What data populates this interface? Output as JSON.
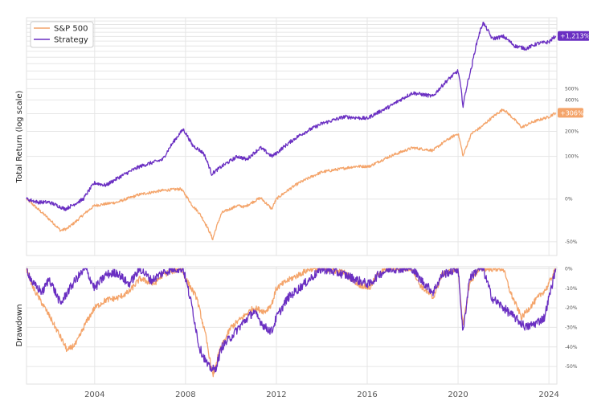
{
  "chart_data": [
    {
      "type": "line",
      "panel": "top",
      "ylabel": "Total Return (log scale)",
      "yscale": "log",
      "ylim": [
        -0.6,
        18.0
      ],
      "y_ticks": [
        -0.5,
        0,
        1,
        2,
        4,
        5
      ],
      "y_tick_labels": [
        "-50%",
        "0%",
        "100%",
        "200%",
        "400%",
        "500%"
      ],
      "x_ticks": [
        2004,
        2008,
        2012,
        2016,
        2020,
        2024
      ],
      "xlim": [
        2001.0,
        2024.35
      ],
      "grid": true,
      "legend": "top-left",
      "series": [
        {
          "name": "S&P 500",
          "color": "#f4a46a",
          "end_label": "+306%",
          "x": [
            2001.0,
            2001.5,
            2002.0,
            2002.5,
            2002.8,
            2003.2,
            2003.6,
            2004.0,
            2005.0,
            2006.0,
            2007.0,
            2007.8,
            2008.3,
            2008.6,
            2009.2,
            2009.6,
            2010.3,
            2010.6,
            2011.3,
            2011.8,
            2012.0,
            2013.0,
            2014.0,
            2015.5,
            2016.1,
            2017.0,
            2018.0,
            2018.9,
            2019.5,
            2020.0,
            2020.22,
            2020.6,
            2021.0,
            2021.99,
            2022.8,
            2023.3,
            2024.0,
            2024.3
          ],
          "values": [
            0.0,
            -0.15,
            -0.28,
            -0.4,
            -0.38,
            -0.3,
            -0.2,
            -0.1,
            -0.05,
            0.08,
            0.15,
            0.18,
            -0.1,
            -0.2,
            -0.48,
            -0.2,
            -0.1,
            -0.12,
            0.02,
            -0.15,
            0.0,
            0.3,
            0.55,
            0.7,
            0.7,
            1.0,
            1.3,
            1.2,
            1.6,
            1.9,
            1.0,
            1.9,
            2.2,
            3.3,
            2.2,
            2.5,
            2.8,
            3.06
          ]
        },
        {
          "name": "Strategy",
          "color": "#6a2fc2",
          "end_label": "+1,213%",
          "x": [
            2001.0,
            2001.5,
            2002.0,
            2002.7,
            2003.0,
            2003.5,
            2004.0,
            2004.5,
            2005.0,
            2006.0,
            2007.0,
            2007.9,
            2008.3,
            2008.8,
            2009.15,
            2009.6,
            2010.3,
            2010.7,
            2011.3,
            2011.8,
            2012.0,
            2013.0,
            2014.0,
            2015.0,
            2016.0,
            2017.0,
            2018.0,
            2018.9,
            2019.5,
            2020.0,
            2020.22,
            2020.6,
            2020.9,
            2021.1,
            2021.5,
            2022.0,
            2022.5,
            2023.0,
            2023.5,
            2024.0,
            2024.3
          ],
          "values": [
            0.0,
            -0.05,
            -0.05,
            -0.15,
            -0.1,
            0.0,
            0.3,
            0.25,
            0.4,
            0.7,
            0.9,
            2.1,
            1.4,
            1.1,
            0.5,
            0.7,
            1.0,
            0.9,
            1.3,
            1.0,
            1.1,
            1.8,
            2.4,
            2.8,
            2.7,
            3.5,
            4.6,
            4.3,
            5.8,
            7.0,
            3.5,
            7.5,
            13.0,
            16.5,
            12.5,
            13.0,
            11.0,
            10.5,
            11.5,
            11.8,
            13.13
          ]
        }
      ]
    },
    {
      "type": "line",
      "panel": "bottom",
      "ylabel": "Drawdown",
      "ylim": [
        -59,
        1
      ],
      "y_ticks": [
        0,
        -10,
        -20,
        -30,
        -40,
        -50
      ],
      "y_tick_labels": [
        "0%",
        "-10%",
        "-20%",
        "-30%",
        "-40%",
        "-50%"
      ],
      "x_ticks": [
        2004,
        2008,
        2012,
        2016,
        2020,
        2024
      ],
      "x_tick_labels": [
        "2004",
        "2008",
        "2012",
        "2016",
        "2020",
        "2024"
      ],
      "xlim": [
        2001.0,
        2024.35
      ],
      "grid": true,
      "series": [
        {
          "name": "S&P 500",
          "color": "#f4a46a",
          "x": [
            2001.0,
            2001.3,
            2001.7,
            2002.0,
            2002.5,
            2002.8,
            2003.2,
            2003.6,
            2004.0,
            2004.5,
            2005.0,
            2005.5,
            2006.0,
            2006.6,
            2007.0,
            2007.5,
            2007.8,
            2008.0,
            2008.5,
            2008.9,
            2009.2,
            2009.5,
            2010.0,
            2010.5,
            2011.0,
            2011.5,
            2011.8,
            2012.0,
            2012.5,
            2013.0,
            2013.5,
            2014.0,
            2015.0,
            2015.6,
            2016.1,
            2016.5,
            2017.0,
            2018.0,
            2018.3,
            2018.9,
            2019.3,
            2020.0,
            2020.22,
            2020.5,
            2020.8,
            2021.0,
            2021.99,
            2022.3,
            2022.8,
            2023.0,
            2023.5,
            2023.9,
            2024.3
          ],
          "values": [
            0,
            -10,
            -18,
            -24,
            -35,
            -42,
            -38,
            -28,
            -20,
            -16,
            -15,
            -12,
            -5,
            -8,
            -3,
            -1,
            0,
            -5,
            -15,
            -35,
            -55,
            -42,
            -30,
            -25,
            -20,
            -22,
            -18,
            -10,
            -6,
            -3,
            0,
            0,
            -2,
            -8,
            -10,
            -2,
            0,
            0,
            -8,
            -15,
            -3,
            0,
            -30,
            -8,
            -2,
            0,
            0,
            -12,
            -25,
            -22,
            -15,
            -10,
            0
          ]
        },
        {
          "name": "Strategy",
          "color": "#6a2fc2",
          "x": [
            2001.0,
            2001.3,
            2001.7,
            2002.0,
            2002.5,
            2002.8,
            2003.2,
            2003.6,
            2004.0,
            2004.5,
            2005.0,
            2005.5,
            2006.0,
            2006.5,
            2007.0,
            2007.5,
            2007.9,
            2008.3,
            2008.6,
            2009.0,
            2009.3,
            2009.6,
            2010.0,
            2010.5,
            2011.0,
            2011.5,
            2011.8,
            2012.0,
            2012.5,
            2013.0,
            2013.5,
            2014.0,
            2015.0,
            2015.6,
            2016.1,
            2016.5,
            2017.0,
            2018.0,
            2018.3,
            2018.9,
            2019.3,
            2020.0,
            2020.22,
            2020.5,
            2020.9,
            2021.1,
            2021.5,
            2022.0,
            2022.5,
            2023.0,
            2023.4,
            2023.8,
            2024.3
          ],
          "values": [
            0,
            -8,
            -12,
            -5,
            -18,
            -12,
            -5,
            0,
            -10,
            -3,
            -2,
            -8,
            0,
            -6,
            -2,
            0,
            0,
            -20,
            -40,
            -50,
            -52,
            -40,
            -35,
            -28,
            -22,
            -30,
            -32,
            -25,
            -15,
            -10,
            -5,
            0,
            -3,
            -6,
            -8,
            -3,
            0,
            0,
            -5,
            -12,
            -3,
            0,
            -33,
            -5,
            0,
            0,
            -15,
            -20,
            -25,
            -30,
            -28,
            -25,
            0
          ]
        }
      ]
    }
  ]
}
